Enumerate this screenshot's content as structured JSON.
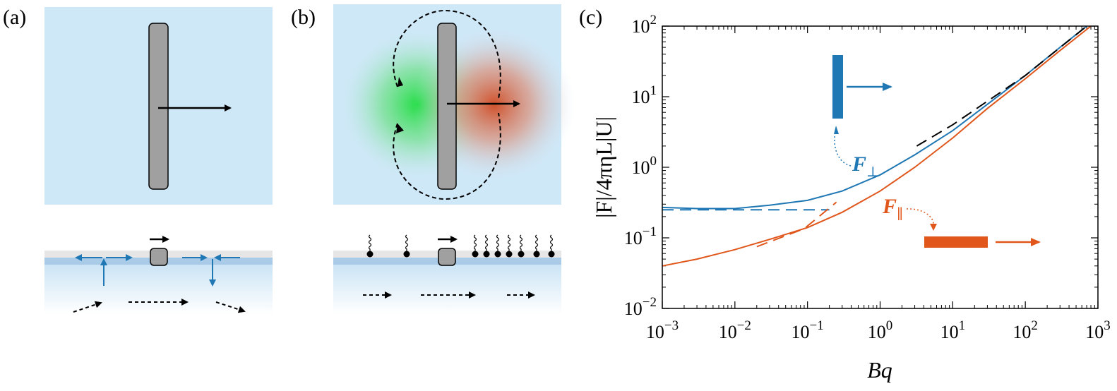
{
  "panels": {
    "a": {
      "label": "(a)"
    },
    "b": {
      "label": "(b)"
    },
    "c": {
      "label": "(c)"
    }
  },
  "colors": {
    "fluid": "#cfe8f8",
    "rod": "#a0a0a0",
    "blue": "#1f77b4",
    "orange": "#e0561b",
    "green": "#22dd44",
    "red": "#d0604a"
  },
  "chart_data": {
    "type": "line",
    "xscale": "log",
    "yscale": "log",
    "xlim": [
      0.001,
      1000
    ],
    "ylim": [
      0.01,
      100
    ],
    "xlabel": "Bq",
    "ylabel": "|F|/4πηL|U|",
    "xticks": [
      {
        "value": 0.001,
        "base": "10",
        "exp": "−3"
      },
      {
        "value": 0.01,
        "base": "10",
        "exp": "−2"
      },
      {
        "value": 0.1,
        "base": "10",
        "exp": "−1"
      },
      {
        "value": 1,
        "base": "10",
        "exp": "0"
      },
      {
        "value": 10,
        "base": "10",
        "exp": "1"
      },
      {
        "value": 100,
        "base": "10",
        "exp": "2"
      },
      {
        "value": 1000,
        "base": "10",
        "exp": "3"
      }
    ],
    "yticks": [
      {
        "value": 0.01,
        "base": "10",
        "exp": "−2"
      },
      {
        "value": 0.1,
        "base": "10",
        "exp": "−1"
      },
      {
        "value": 1,
        "base": "10",
        "exp": "0"
      },
      {
        "value": 10,
        "base": "10",
        "exp": "1"
      },
      {
        "value": 100,
        "base": "10",
        "exp": "2"
      }
    ],
    "series": [
      {
        "name": "F⊥",
        "color": "#1f77b4",
        "style": "solid",
        "x": [
          0.001,
          0.003,
          0.01,
          0.03,
          0.1,
          0.3,
          1,
          3,
          10,
          30,
          100,
          300,
          700
        ],
        "y": [
          0.27,
          0.26,
          0.26,
          0.29,
          0.34,
          0.46,
          0.78,
          1.5,
          3.3,
          7.8,
          20,
          50,
          100
        ]
      },
      {
        "name": "F∥",
        "color": "#e0561b",
        "style": "solid",
        "x": [
          0.001,
          0.003,
          0.01,
          0.03,
          0.1,
          0.3,
          1,
          3,
          10,
          30,
          100,
          300,
          800
        ],
        "y": [
          0.04,
          0.05,
          0.068,
          0.095,
          0.14,
          0.23,
          0.46,
          1.0,
          2.6,
          6.8,
          18,
          45,
          100
        ]
      },
      {
        "name": "",
        "color": "#1f77b4",
        "style": "dashed",
        "x": [
          0.001,
          0.2
        ],
        "y": [
          0.25,
          0.25
        ]
      },
      {
        "name": "",
        "color": "#e0561b",
        "style": "dashed",
        "x": [
          0.02,
          0.09,
          0.25
        ],
        "y": [
          0.075,
          0.135,
          0.32
        ]
      },
      {
        "name": "",
        "color": "#000000",
        "style": "dashed",
        "x": [
          3.2,
          10,
          100,
          700
        ],
        "y": [
          2.0,
          4.0,
          20,
          100
        ]
      }
    ],
    "annotations": [
      {
        "text": "F",
        "sub": "⊥",
        "color": "#1f77b4"
      },
      {
        "text": "F",
        "sub": "∥",
        "color": "#e0561b"
      }
    ]
  }
}
